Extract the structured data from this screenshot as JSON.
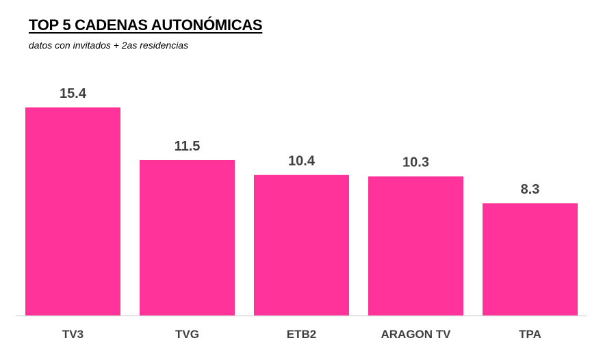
{
  "chart_data": {
    "type": "bar",
    "title": "TOP 5 CADENAS AUTONÓMICAS",
    "subtitle": "datos con invitados + 2as residencias",
    "categories": [
      "TV3",
      "TVG",
      "ETB2",
      "ARAGON TV",
      "TPA"
    ],
    "values": [
      15.4,
      11.5,
      10.4,
      10.3,
      8.3
    ],
    "xlabel": "",
    "ylabel": "",
    "ylim": [
      0,
      15.4
    ],
    "grid": false,
    "legend": "none",
    "bar_color": "#FF3399",
    "label_color": "#404040"
  }
}
